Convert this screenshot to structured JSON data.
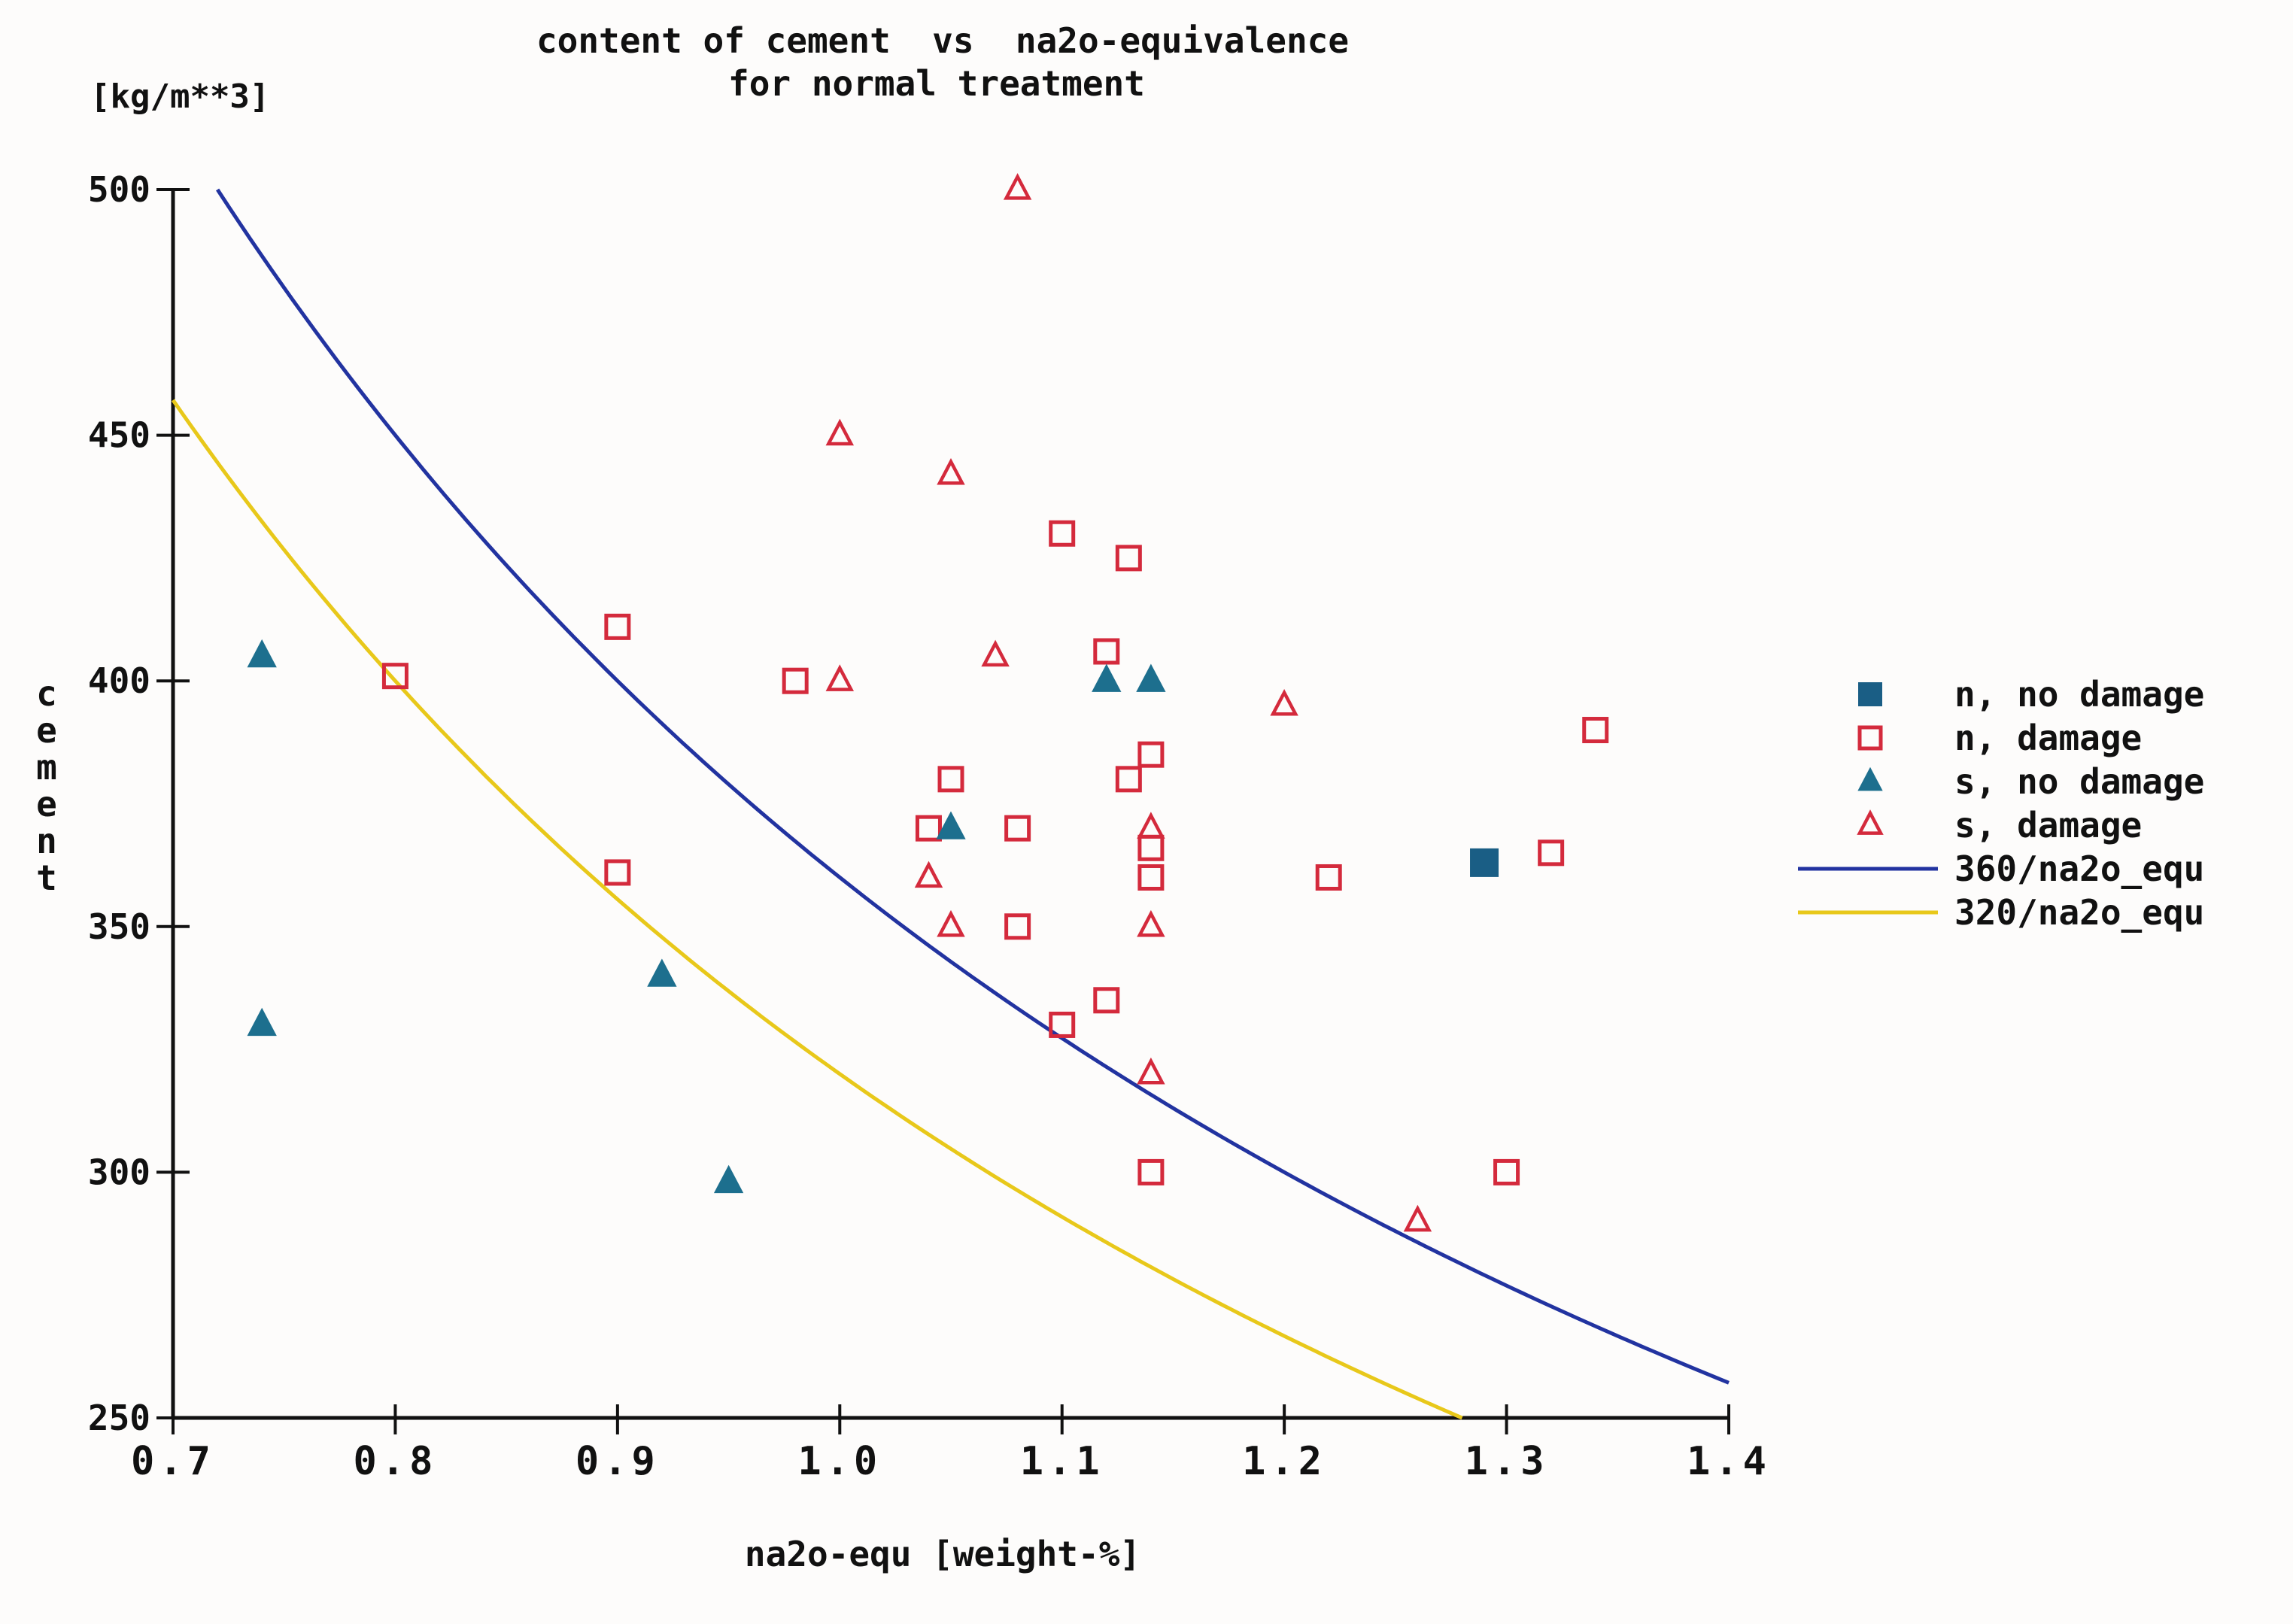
{
  "chart_data": {
    "type": "scatter",
    "title": "content of cement  vs  na2o-equivalence",
    "subtitle": "for normal treatment",
    "xlabel": "na2o-equ [weight-%]",
    "ylabel": "cement",
    "yunit": "[kg/m**3]",
    "xlim": [
      0.7,
      1.4
    ],
    "ylim": [
      250,
      500
    ],
    "x_ticks": [
      {
        "value": 0.7,
        "label": "0.7"
      },
      {
        "value": 0.8,
        "label": "0.8"
      },
      {
        "value": 0.9,
        "label": "0.9"
      },
      {
        "value": 1.0,
        "label": "1.0"
      },
      {
        "value": 1.1,
        "label": "1.1"
      },
      {
        "value": 1.2,
        "label": "1.2"
      },
      {
        "value": 1.3,
        "label": "1.3"
      },
      {
        "value": 1.4,
        "label": "1.4"
      }
    ],
    "y_ticks": [
      {
        "value": 250,
        "label": "250"
      },
      {
        "value": 300,
        "label": "300"
      },
      {
        "value": 350,
        "label": "350"
      },
      {
        "value": 400,
        "label": "400"
      },
      {
        "value": 450,
        "label": "450"
      },
      {
        "value": 500,
        "label": "500"
      }
    ],
    "grid": false,
    "legend_position": "right",
    "series": [
      {
        "name": "n, no damage",
        "marker": "filled-square",
        "color": "#1a5e85",
        "points": [
          [
            1.29,
            363
          ]
        ]
      },
      {
        "name": "n, damage",
        "marker": "open-square",
        "color": "#d42a3c",
        "points": [
          [
            0.8,
            401
          ],
          [
            0.9,
            411
          ],
          [
            0.9,
            361
          ],
          [
            0.98,
            400
          ],
          [
            1.04,
            370
          ],
          [
            1.05,
            380
          ],
          [
            1.08,
            370
          ],
          [
            1.08,
            350
          ],
          [
            1.1,
            430
          ],
          [
            1.1,
            330
          ],
          [
            1.12,
            406
          ],
          [
            1.12,
            335
          ],
          [
            1.13,
            425
          ],
          [
            1.13,
            380
          ],
          [
            1.14,
            385
          ],
          [
            1.14,
            366
          ],
          [
            1.14,
            360
          ],
          [
            1.14,
            300
          ],
          [
            1.22,
            360
          ],
          [
            1.3,
            300
          ],
          [
            1.32,
            365
          ],
          [
            1.34,
            390
          ]
        ]
      },
      {
        "name": "s, no damage",
        "marker": "filled-triangle",
        "color": "#1d6f8e",
        "points": [
          [
            0.74,
            405
          ],
          [
            0.74,
            330
          ],
          [
            0.92,
            340
          ],
          [
            0.95,
            298
          ],
          [
            1.05,
            370
          ],
          [
            1.12,
            400
          ],
          [
            1.14,
            400
          ]
        ]
      },
      {
        "name": "s, damage",
        "marker": "open-triangle",
        "color": "#d42a3c",
        "points": [
          [
            1.08,
            500
          ],
          [
            1.0,
            450
          ],
          [
            1.05,
            442
          ],
          [
            1.0,
            400
          ],
          [
            1.07,
            405
          ],
          [
            1.04,
            360
          ],
          [
            1.05,
            350
          ],
          [
            1.14,
            370
          ],
          [
            1.14,
            350
          ],
          [
            1.14,
            320
          ],
          [
            1.2,
            395
          ],
          [
            1.26,
            290
          ]
        ]
      },
      {
        "name": "360/na2o_equ",
        "type": "line",
        "color": "#2233a0",
        "function_numerator": 360,
        "x_range": [
          0.72,
          1.4
        ]
      },
      {
        "name": "320/na2o_equ",
        "type": "line",
        "color": "#e8c81a",
        "function_numerator": 320,
        "x_range": [
          0.7,
          1.28
        ]
      }
    ]
  }
}
